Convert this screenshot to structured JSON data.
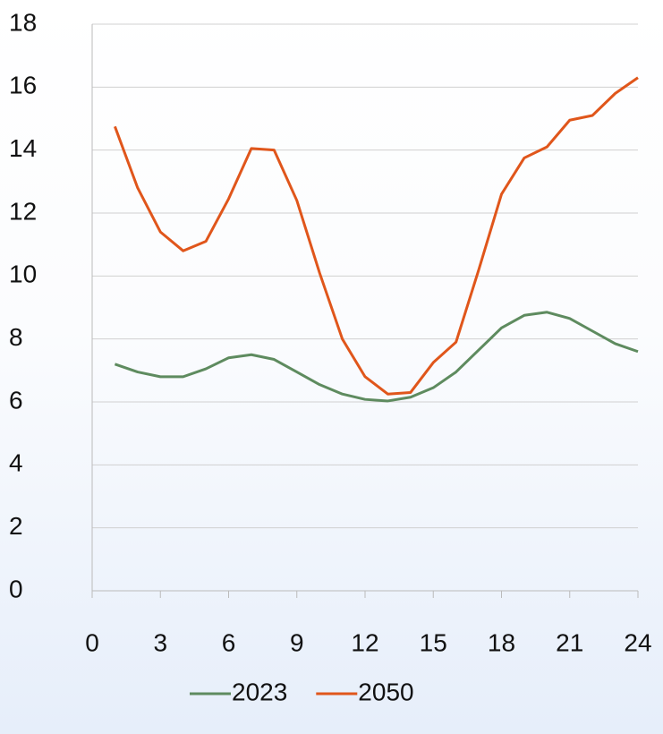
{
  "chart_data": {
    "type": "line",
    "x": [
      1,
      2,
      3,
      4,
      5,
      6,
      7,
      8,
      9,
      10,
      11,
      12,
      13,
      14,
      15,
      16,
      17,
      18,
      19,
      20,
      21,
      22,
      23,
      24
    ],
    "series": [
      {
        "name": "2023",
        "color": "#5e8b5f",
        "values": [
          7.2,
          6.95,
          6.8,
          6.8,
          7.05,
          7.4,
          7.5,
          7.35,
          6.95,
          6.55,
          6.25,
          6.08,
          6.03,
          6.15,
          6.45,
          6.95,
          7.65,
          8.35,
          8.75,
          8.85,
          8.65,
          8.25,
          7.85,
          7.6
        ]
      },
      {
        "name": "2050",
        "color": "#e0561b",
        "values": [
          14.75,
          12.8,
          11.4,
          10.8,
          11.1,
          12.45,
          14.05,
          14.0,
          12.4,
          10.1,
          8.0,
          6.8,
          6.25,
          6.3,
          7.25,
          7.9,
          10.2,
          12.6,
          13.75,
          14.1,
          14.95,
          15.1,
          15.8,
          16.3
        ]
      }
    ],
    "xlim": [
      0,
      24
    ],
    "xticks": [
      0,
      3,
      6,
      9,
      12,
      15,
      18,
      21,
      24
    ],
    "ylim": [
      0,
      18
    ],
    "yticks": [
      0,
      2,
      4,
      6,
      8,
      10,
      12,
      14,
      16,
      18
    ],
    "grid": true,
    "legend": "bottom"
  }
}
